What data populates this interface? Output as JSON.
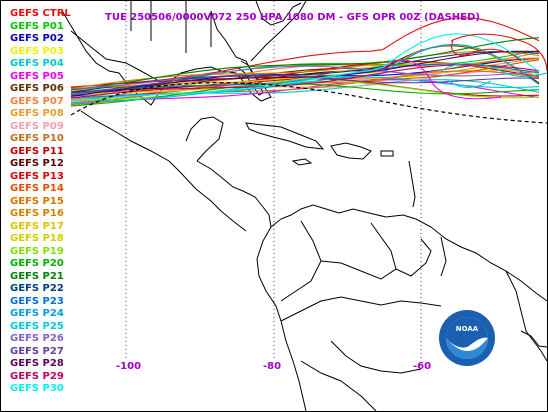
{
  "map": {
    "title": "TUE 250506/0000V072  250 HPA 1080 DM - GFS OPR 00Z (DASHED)",
    "axis_labels": [
      "-100",
      "-80",
      "-60"
    ],
    "logo_text": "NOAA",
    "colors": {
      "title": "#a000c8",
      "coast": "#000000",
      "grid": "#c000c0"
    }
  },
  "legend": {
    "members": [
      {
        "label": "GEFS CTRL",
        "color": "#e01010"
      },
      {
        "label": "GEFS P01",
        "color": "#00c800"
      },
      {
        "label": "GEFS P02",
        "color": "#0000c8"
      },
      {
        "label": "GEFS P03",
        "color": "#f0f000"
      },
      {
        "label": "GEFS P04",
        "color": "#00c8c8"
      },
      {
        "label": "GEFS P05",
        "color": "#f000f0"
      },
      {
        "label": "GEFS P06",
        "color": "#603000"
      },
      {
        "label": "GEFS P07",
        "color": "#f08040"
      },
      {
        "label": "GEFS P08",
        "color": "#e0a030"
      },
      {
        "label": "GEFS P09",
        "color": "#f0a0b0"
      },
      {
        "label": "GEFS P10",
        "color": "#c07020"
      },
      {
        "label": "GEFS P11",
        "color": "#c00000"
      },
      {
        "label": "GEFS P12",
        "color": "#600000"
      },
      {
        "label": "GEFS P13",
        "color": "#e00000"
      },
      {
        "label": "GEFS P14",
        "color": "#e05000"
      },
      {
        "label": "GEFS P15",
        "color": "#e07000"
      },
      {
        "label": "GEFS P16",
        "color": "#d08000"
      },
      {
        "label": "GEFS P17",
        "color": "#e0c000"
      },
      {
        "label": "GEFS P18",
        "color": "#d0d000"
      },
      {
        "label": "GEFS P19",
        "color": "#80e000"
      },
      {
        "label": "GEFS P20",
        "color": "#00b000"
      },
      {
        "label": "GEFS P21",
        "color": "#008000"
      },
      {
        "label": "GEFS P22",
        "color": "#004080"
      },
      {
        "label": "GEFS P23",
        "color": "#0070d0"
      },
      {
        "label": "GEFS P24",
        "color": "#00a0e0"
      },
      {
        "label": "GEFS P25",
        "color": "#00c8e0"
      },
      {
        "label": "GEFS P26",
        "color": "#8060d0"
      },
      {
        "label": "GEFS P27",
        "color": "#6040a0"
      },
      {
        "label": "GEFS P28",
        "color": "#600060"
      },
      {
        "label": "GEFS P29",
        "color": "#c00060"
      },
      {
        "label": "GEFS P30",
        "color": "#00f0f0"
      }
    ]
  }
}
